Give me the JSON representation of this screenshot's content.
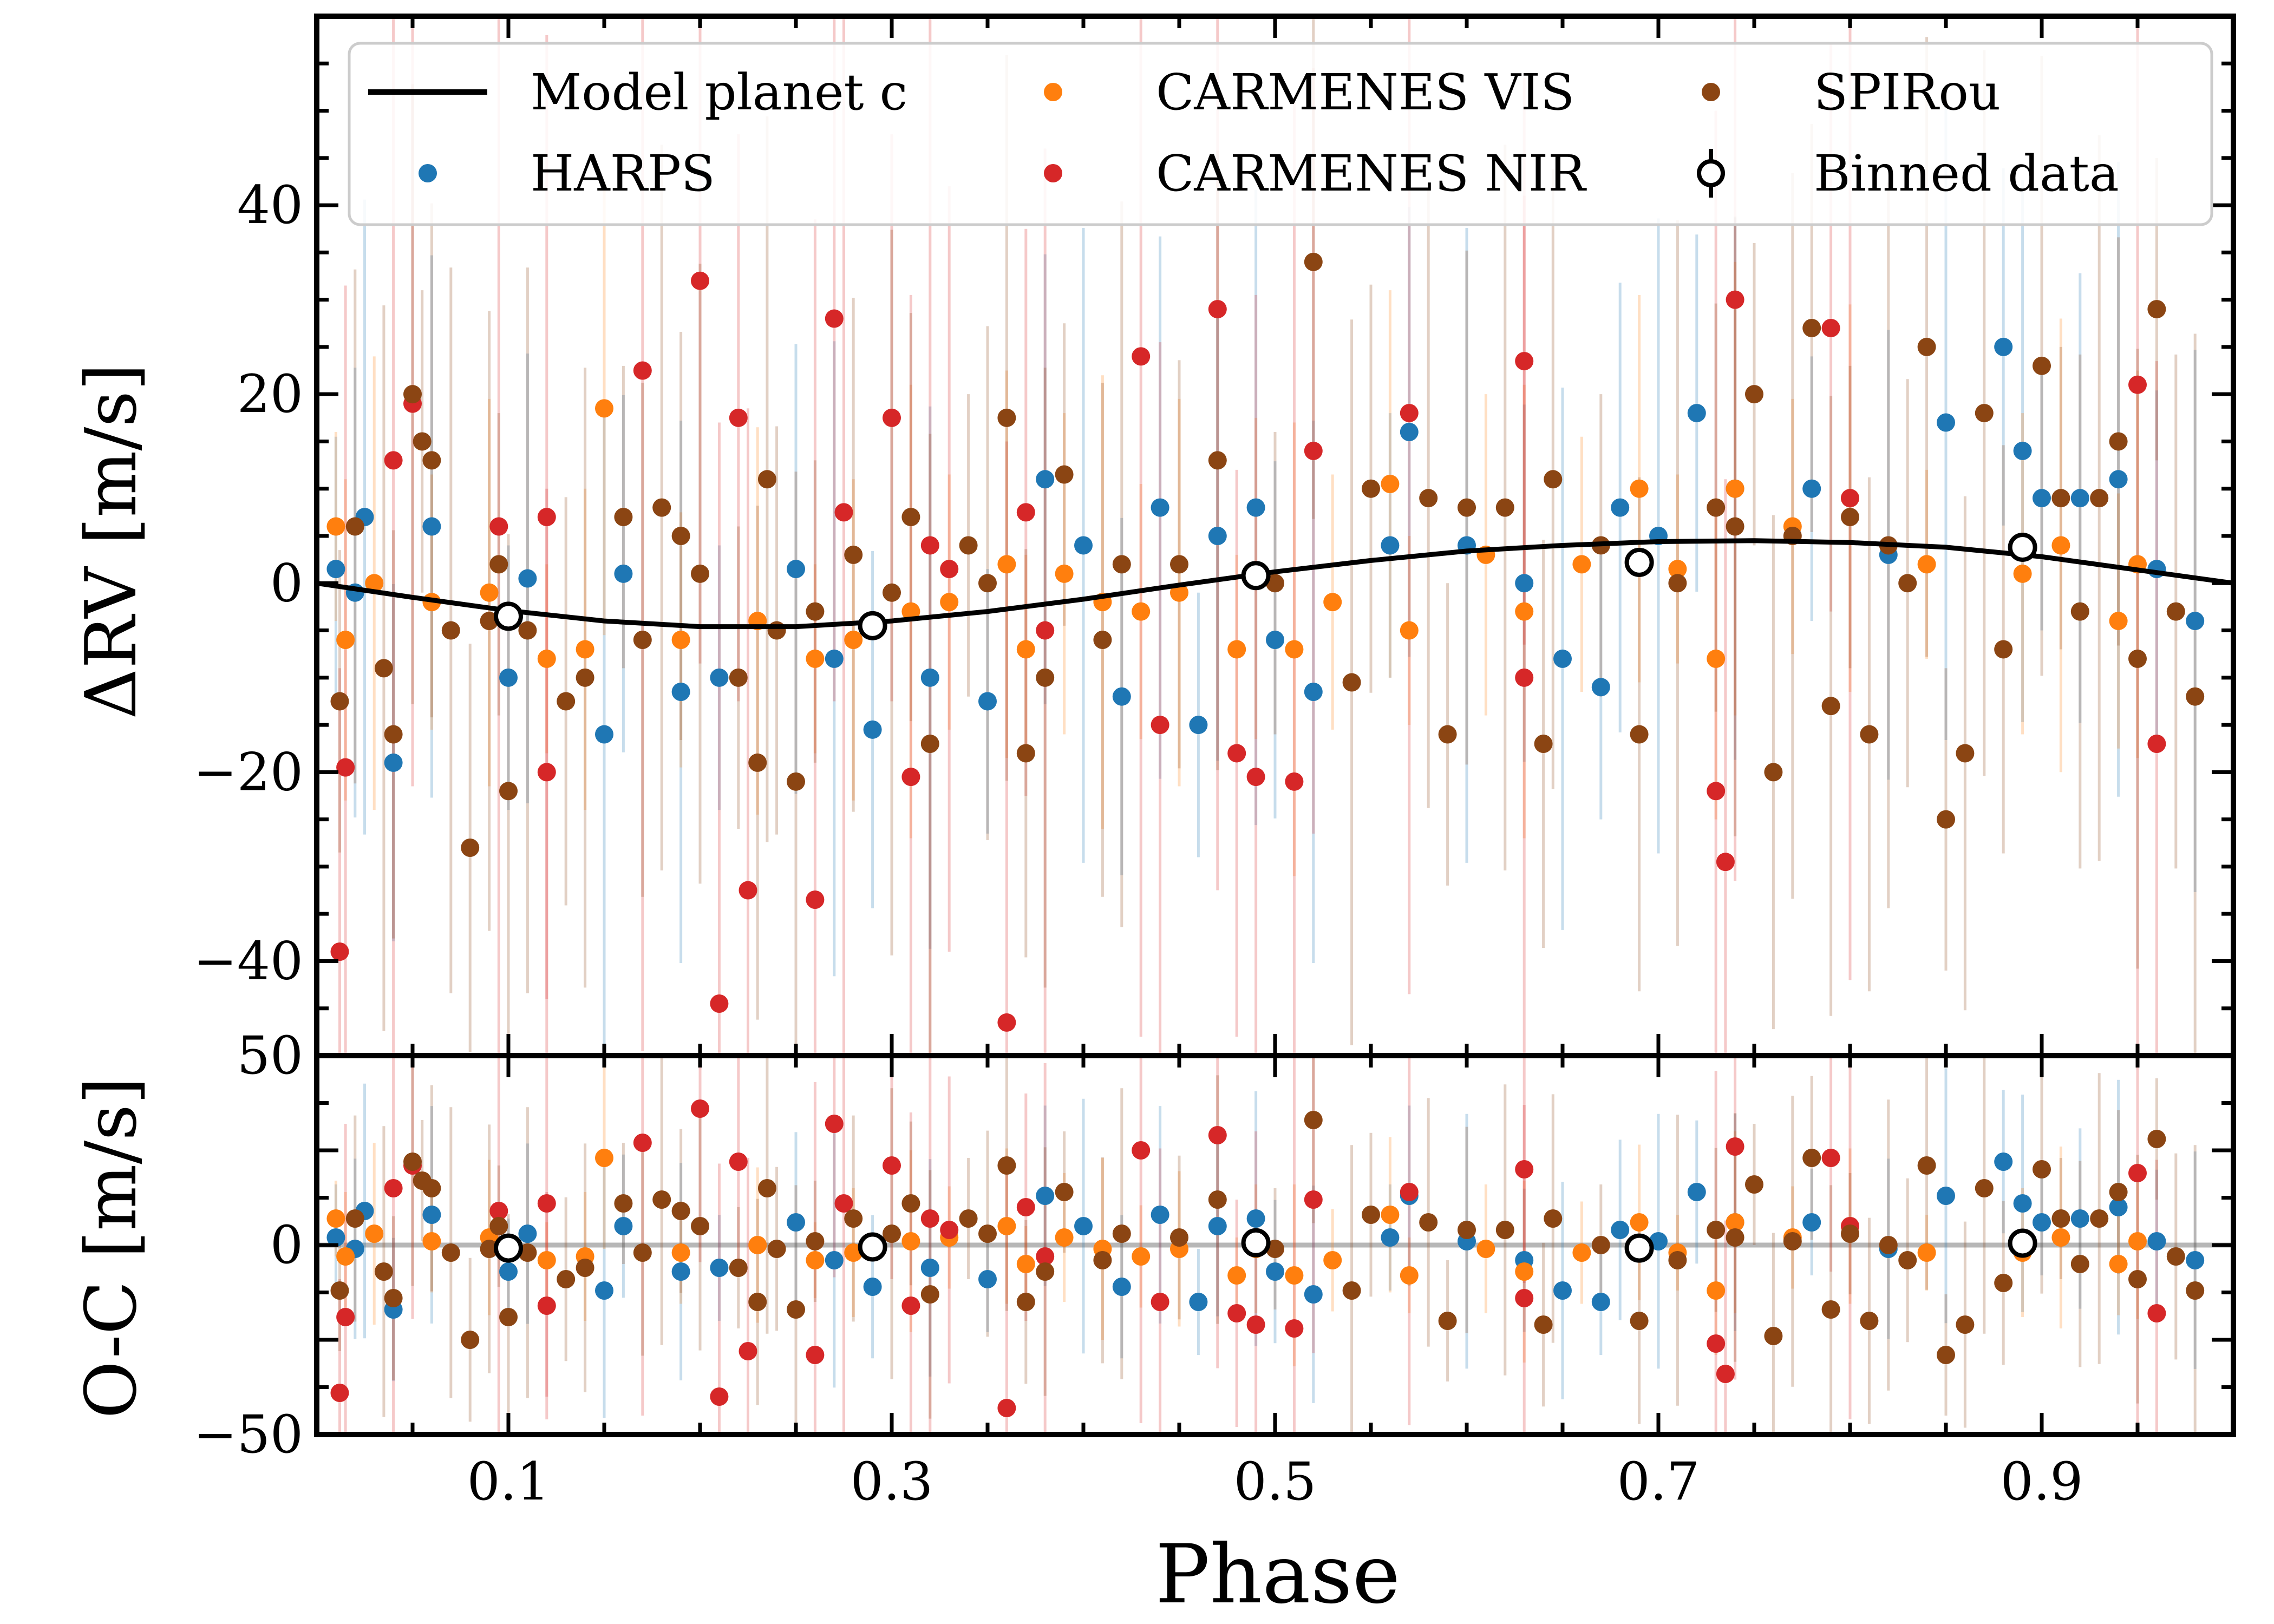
{
  "chart_data": {
    "type": "scatter",
    "xlabel": "Phase",
    "xlim": [
      0.0,
      1.0
    ],
    "xticks": [
      "0.1",
      "0.3",
      "0.5",
      "0.7",
      "0.9"
    ],
    "xtick_values": [
      0.1,
      0.3,
      0.5,
      0.7,
      0.9
    ],
    "panels": [
      {
        "name": "top",
        "ylabel": "ΔRV [m/s]",
        "ylim": [
          -50,
          60
        ],
        "yticks": [
          "40",
          "20",
          "0",
          "−20",
          "−40"
        ],
        "ytick_values": [
          40,
          20,
          0,
          -20,
          -40
        ]
      },
      {
        "name": "bottom",
        "ylabel": "O-C [m/s]",
        "ylim": [
          -50,
          50
        ],
        "yticks": [
          "50",
          "0",
          "−50"
        ],
        "ytick_values": [
          50,
          0,
          -50
        ]
      }
    ],
    "legend": {
      "placement": "top",
      "entries": [
        "Model planet c",
        "HARPS",
        "CARMENES VIS",
        "CARMENES NIR",
        "SPIRou",
        "Binned data"
      ]
    },
    "model": {
      "name": "Model planet c",
      "color": "#000000",
      "x": [
        0.0,
        0.05,
        0.1,
        0.15,
        0.2,
        0.25,
        0.3,
        0.35,
        0.4,
        0.45,
        0.5,
        0.55,
        0.6,
        0.65,
        0.7,
        0.75,
        0.8,
        0.85,
        0.9,
        0.95,
        1.0
      ],
      "y": [
        0.0,
        -1.5,
        -2.9,
        -4.0,
        -4.6,
        -4.6,
        -4.0,
        -3.0,
        -1.7,
        -0.2,
        1.2,
        2.4,
        3.4,
        4.0,
        4.4,
        4.5,
        4.3,
        3.8,
        2.8,
        1.4,
        0.0
      ]
    },
    "binned": {
      "name": "Binned data",
      "x": [
        0.1,
        0.29,
        0.49,
        0.69,
        0.89
      ],
      "y": [
        -3.5,
        -4.5,
        0.8,
        2.2,
        3.8
      ],
      "residual": [
        -0.8,
        -0.5,
        0.6,
        -0.8,
        0.5
      ]
    },
    "series": [
      {
        "name": "HARPS",
        "color": "#1f77b4",
        "x": [
          0.01,
          0.02,
          0.025,
          0.04,
          0.06,
          0.1,
          0.11,
          0.15,
          0.16,
          0.19,
          0.21,
          0.25,
          0.27,
          0.29,
          0.32,
          0.35,
          0.38,
          0.4,
          0.42,
          0.44,
          0.46,
          0.47,
          0.49,
          0.5,
          0.52,
          0.56,
          0.57,
          0.6,
          0.63,
          0.65,
          0.67,
          0.68,
          0.7,
          0.72,
          0.74,
          0.78,
          0.82,
          0.85,
          0.88,
          0.89,
          0.9,
          0.92,
          0.94,
          0.96,
          0.98
        ],
        "y": [
          1.5,
          -1.0,
          7.0,
          -19.0,
          6.0,
          -10.0,
          0.5,
          -16.0,
          1.0,
          -11.5,
          -10.0,
          1.5,
          -8.0,
          -15.5,
          -10.0,
          -12.5,
          11.0,
          4.0,
          -12.0,
          8.0,
          -15.0,
          5.0,
          8.0,
          -6.0,
          -11.5,
          4.0,
          16.0,
          4.0,
          0.0,
          -8.0,
          -11.0,
          8.0,
          5.0,
          18.0,
          10.0,
          10.0,
          3.0,
          17.0,
          25.0,
          14.0,
          9.0,
          9.0,
          11.0,
          1.5,
          -4.0
        ],
        "residual": [
          2.0,
          -1.0,
          9.0,
          -17.0,
          8.0,
          -7.0,
          3.0,
          -12.0,
          5.0,
          -7.0,
          -6.0,
          6.0,
          -4.0,
          -11.0,
          -6.0,
          -9.0,
          13.0,
          5.0,
          -11.0,
          8.0,
          -15.0,
          5.0,
          7.0,
          -7.0,
          -13.0,
          2.0,
          13.0,
          1.0,
          -4.0,
          -12.0,
          -15.0,
          4.0,
          1.0,
          14.0,
          6.0,
          6.0,
          -1.0,
          13.0,
          22.0,
          11.0,
          6.0,
          7.0,
          10.0,
          1.0,
          -4.0
        ]
      },
      {
        "name": "CARMENES VIS",
        "color": "#ff7f0e",
        "x": [
          0.01,
          0.015,
          0.03,
          0.06,
          0.09,
          0.12,
          0.14,
          0.15,
          0.19,
          0.23,
          0.26,
          0.28,
          0.31,
          0.33,
          0.36,
          0.37,
          0.39,
          0.41,
          0.43,
          0.45,
          0.48,
          0.49,
          0.51,
          0.53,
          0.56,
          0.57,
          0.61,
          0.63,
          0.66,
          0.69,
          0.71,
          0.73,
          0.74,
          0.77,
          0.8,
          0.84,
          0.89,
          0.91,
          0.94,
          0.95
        ],
        "y": [
          6.0,
          -6.0,
          0.0,
          -2.0,
          -1.0,
          -8.0,
          -7.0,
          18.5,
          -6.0,
          -4.0,
          -8.0,
          -6.0,
          -3.0,
          -2.0,
          2.0,
          -7.0,
          1.0,
          -2.0,
          -3.0,
          -1.0,
          -7.0,
          0.5,
          -7.0,
          -2.0,
          10.5,
          -5.0,
          3.0,
          -3.0,
          2.0,
          10.0,
          1.5,
          -8.0,
          10.0,
          6.0,
          9.0,
          2.0,
          1.0,
          4.0,
          -4.0,
          2.0
        ],
        "residual": [
          7.0,
          -3.0,
          3.0,
          1.0,
          2.0,
          -4.0,
          -3.0,
          23.0,
          -2.0,
          0.0,
          -4.0,
          -2.0,
          1.0,
          2.0,
          5.0,
          -5.0,
          2.0,
          -1.0,
          -3.0,
          -1.0,
          -8.0,
          -1.0,
          -8.0,
          -4.0,
          8.0,
          -8.0,
          -1.0,
          -7.0,
          -2.0,
          6.0,
          -2.0,
          -12.0,
          6.0,
          2.0,
          5.0,
          -2.0,
          -2.0,
          2.0,
          -5.0,
          1.0
        ]
      },
      {
        "name": "CARMENES NIR",
        "color": "#d62728",
        "x": [
          0.012,
          0.015,
          0.04,
          0.05,
          0.095,
          0.12,
          0.12,
          0.17,
          0.2,
          0.21,
          0.22,
          0.225,
          0.26,
          0.27,
          0.275,
          0.3,
          0.31,
          0.32,
          0.33,
          0.36,
          0.37,
          0.38,
          0.43,
          0.44,
          0.47,
          0.48,
          0.49,
          0.51,
          0.52,
          0.57,
          0.63,
          0.63,
          0.73,
          0.735,
          0.74,
          0.79,
          0.8,
          0.95,
          0.96
        ],
        "y": [
          -39.0,
          -19.5,
          13.0,
          19.0,
          6.0,
          -20.0,
          7.0,
          22.5,
          32.0,
          -44.5,
          17.5,
          -32.5,
          -33.5,
          28.0,
          7.5,
          17.5,
          -20.5,
          4.0,
          1.5,
          -46.5,
          7.5,
          -5.0,
          24.0,
          -15.0,
          29.0,
          -18.0,
          -20.5,
          -21.0,
          14.0,
          18.0,
          23.5,
          -10.0,
          -22.0,
          -29.5,
          30.0,
          27.0,
          9.0,
          21.0,
          -17.0
        ],
        "residual": [
          -39.0,
          -19.0,
          15.0,
          21.0,
          9.0,
          -16.0,
          11.0,
          27.0,
          36.0,
          -40.0,
          22.0,
          -28.0,
          -29.0,
          32.0,
          11.0,
          21.0,
          -16.0,
          7.0,
          4.0,
          -43.0,
          10.0,
          -3.0,
          25.0,
          -15.0,
          29.0,
          -18.0,
          -21.0,
          -22.0,
          12.0,
          14.0,
          20.0,
          -14.0,
          -26.0,
          -34.0,
          26.0,
          23.0,
          5.0,
          19.0,
          -18.0
        ]
      },
      {
        "name": "SPIRou",
        "color": "#8b4513",
        "x": [
          0.012,
          0.02,
          0.035,
          0.04,
          0.05,
          0.055,
          0.06,
          0.07,
          0.08,
          0.09,
          0.095,
          0.1,
          0.11,
          0.13,
          0.14,
          0.16,
          0.17,
          0.18,
          0.19,
          0.2,
          0.22,
          0.23,
          0.235,
          0.24,
          0.25,
          0.26,
          0.28,
          0.3,
          0.31,
          0.32,
          0.34,
          0.35,
          0.36,
          0.37,
          0.38,
          0.39,
          0.41,
          0.42,
          0.45,
          0.47,
          0.5,
          0.52,
          0.54,
          0.55,
          0.58,
          0.59,
          0.6,
          0.62,
          0.64,
          0.645,
          0.67,
          0.69,
          0.71,
          0.73,
          0.74,
          0.75,
          0.76,
          0.77,
          0.78,
          0.79,
          0.8,
          0.81,
          0.82,
          0.83,
          0.84,
          0.85,
          0.86,
          0.87,
          0.88,
          0.9,
          0.91,
          0.92,
          0.93,
          0.94,
          0.95,
          0.96,
          0.97,
          0.98
        ],
        "y": [
          -12.5,
          6.0,
          -9.0,
          -16.0,
          20.0,
          15.0,
          13.0,
          -5.0,
          -28.0,
          -4.0,
          2.0,
          -22.0,
          -5.0,
          -12.5,
          -10.0,
          7.0,
          -6.0,
          8.0,
          5.0,
          1.0,
          -10.0,
          -19.0,
          11.0,
          -5.0,
          -21.0,
          -3.0,
          3.0,
          -1.0,
          7.0,
          -17.0,
          4.0,
          0.0,
          17.5,
          -18.0,
          -10.0,
          11.5,
          -6.0,
          2.0,
          2.0,
          13.0,
          0.0,
          34.0,
          -10.5,
          10.0,
          9.0,
          -16.0,
          8.0,
          8.0,
          -17.0,
          11.0,
          4.0,
          -16.0,
          0.0,
          8.0,
          6.0,
          20.0,
          -20.0,
          5.0,
          27.0,
          -13.0,
          7.0,
          -16.0,
          4.0,
          0.0,
          25.0,
          -25.0,
          -18.0,
          18.0,
          -7.0,
          23.0,
          9.0,
          -3.0,
          9.0,
          15.0,
          -8.0,
          29.0,
          -3.0,
          -12.0
        ],
        "residual": [
          -12.0,
          7.0,
          -7.0,
          -14.0,
          22.0,
          17.0,
          15.0,
          -2.0,
          -25.0,
          -1.0,
          5.0,
          -19.0,
          -2.0,
          -9.0,
          -6.0,
          11.0,
          -2.0,
          12.0,
          9.0,
          5.0,
          -6.0,
          -15.0,
          15.0,
          -1.0,
          -17.0,
          1.0,
          7.0,
          3.0,
          11.0,
          -13.0,
          7.0,
          3.0,
          21.0,
          -15.0,
          -7.0,
          14.0,
          -4.0,
          3.0,
          2.0,
          12.0,
          -1.0,
          33.0,
          -12.0,
          8.0,
          6.0,
          -20.0,
          4.0,
          4.0,
          -21.0,
          7.0,
          0.0,
          -20.0,
          -4.0,
          4.0,
          2.0,
          16.0,
          -24.0,
          1.0,
          23.0,
          -17.0,
          3.0,
          -20.0,
          0.0,
          -4.0,
          21.0,
          -29.0,
          -21.0,
          15.0,
          -10.0,
          20.0,
          7.0,
          -5.0,
          7.0,
          14.0,
          -9.0,
          28.0,
          -3.0,
          -12.0
        ]
      }
    ]
  }
}
